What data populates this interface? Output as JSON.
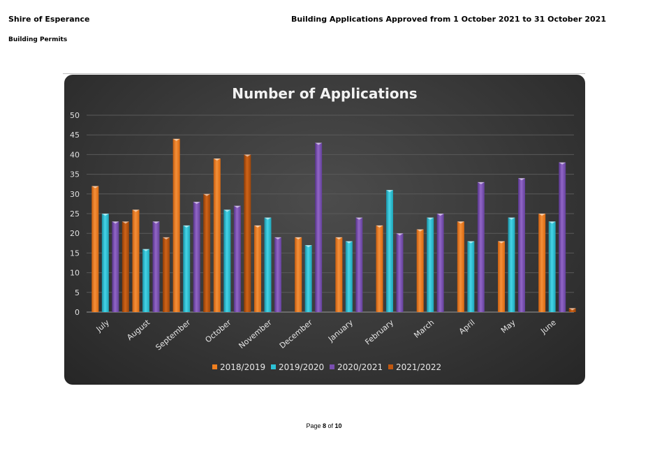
{
  "header": {
    "organisation": "Shire of Esperance",
    "report_title": "Building Applications Approved from 1 October 2021 to 31 October 2021",
    "section": "Building Permits"
  },
  "footer": {
    "prefix": "Page",
    "page": "8",
    "of": "of",
    "total": "10"
  },
  "chart_data": {
    "type": "bar",
    "title": "Number of Applications",
    "xlabel": "",
    "ylabel": "",
    "ylim": [
      0,
      50
    ],
    "yticks": [
      0,
      5,
      10,
      15,
      20,
      25,
      30,
      35,
      40,
      45,
      50
    ],
    "grid": true,
    "legend_position": "bottom",
    "categories": [
      "July",
      "August",
      "September",
      "October",
      "November",
      "December",
      "January",
      "February",
      "March",
      "April",
      "May",
      "June"
    ],
    "series": [
      {
        "name": "2018/2019",
        "color": "#f07f1f",
        "values": [
          32,
          26,
          44,
          39,
          22,
          19,
          19,
          22,
          21,
          23,
          18,
          25
        ]
      },
      {
        "name": "2019/2020",
        "color": "#2cc2d6",
        "values": [
          25,
          16,
          22,
          26,
          24,
          17,
          18,
          31,
          24,
          18,
          24,
          23
        ]
      },
      {
        "name": "2020/2021",
        "color": "#7a4fb0",
        "values": [
          23,
          23,
          28,
          27,
          19,
          43,
          24,
          20,
          25,
          33,
          34,
          38
        ]
      },
      {
        "name": "2021/2022",
        "color": "#c0570f",
        "values": [
          23,
          19,
          30,
          40,
          null,
          null,
          null,
          null,
          null,
          null,
          null,
          1
        ]
      }
    ]
  }
}
